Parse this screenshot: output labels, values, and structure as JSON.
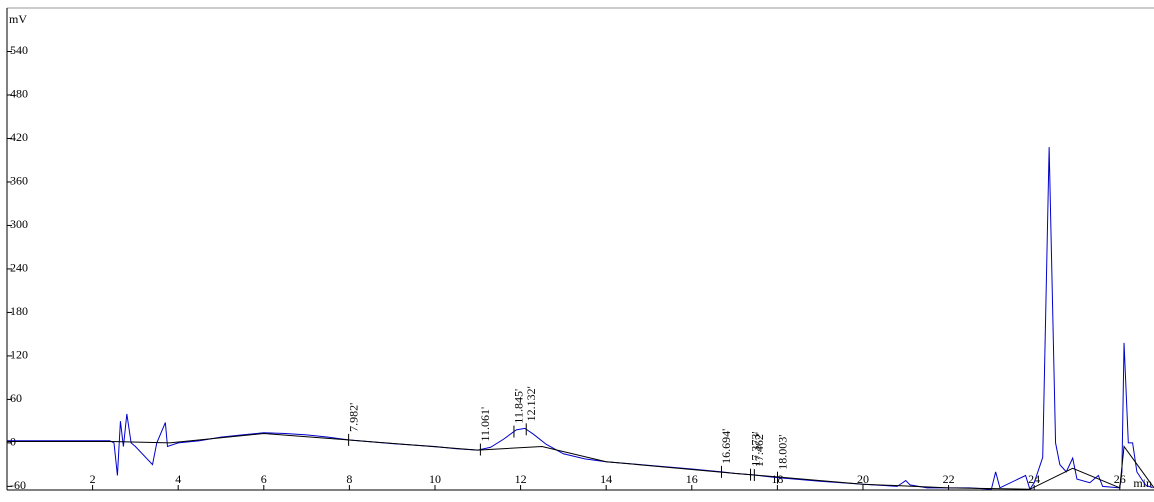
{
  "chart_data": {
    "type": "line",
    "y_label": "mV",
    "x_label": "min",
    "xlim": [
      0,
      26.8
    ],
    "ylim": [
      -65,
      600
    ],
    "xticks": [
      2,
      4,
      6,
      8,
      10,
      12,
      14,
      16,
      18,
      20,
      22,
      24,
      26
    ],
    "yticks": [
      -60,
      0,
      60,
      120,
      180,
      240,
      300,
      360,
      420,
      480,
      540
    ],
    "series": [
      {
        "color": "#0000cc",
        "x": [
          0,
          2.4,
          2.5,
          2.58,
          2.65,
          2.72,
          2.8,
          2.9,
          3.0,
          3.4,
          3.5,
          3.7,
          3.75,
          4.0,
          4.5,
          5,
          5.5,
          6,
          6.5,
          7,
          7.5,
          8,
          9,
          10,
          10.5,
          11,
          11.3,
          11.6,
          11.9,
          12.1,
          12.3,
          12.6,
          13,
          13.5,
          14,
          15,
          16,
          16.7,
          17,
          17.4,
          18,
          19,
          20,
          20.8,
          20.9,
          21,
          21.1,
          21.5,
          22,
          22.5,
          23,
          23.1,
          23.2,
          23.8,
          23.9,
          24.0,
          24.2,
          24.35,
          24.5,
          24.6,
          24.75,
          24.9,
          25.0,
          25.3,
          25.5,
          25.6,
          26.0,
          26.05,
          26.1,
          26.2,
          26.3,
          26.4,
          26.6,
          26.77
        ],
        "values": [
          3,
          3,
          0,
          -45,
          30,
          -5,
          40,
          0,
          -5,
          -30,
          0,
          28,
          -5,
          0,
          3,
          8,
          11,
          14,
          13,
          11,
          8,
          4,
          -1,
          -5,
          -8,
          -10,
          -6,
          5,
          18,
          20,
          12,
          -2,
          -15,
          -22,
          -26,
          -31,
          -36,
          -40,
          -42,
          -44,
          -48,
          -53,
          -57,
          -60,
          -56,
          -52,
          -58,
          -62,
          -62,
          -62,
          -64,
          -40,
          -62,
          -45,
          -64,
          -55,
          -20,
          408,
          0,
          -30,
          -40,
          -21,
          -50,
          -55,
          -45,
          -60,
          -62,
          -40,
          138,
          0,
          0,
          -40,
          -58,
          -62
        ]
      },
      {
        "color": "#000000",
        "x": [
          0,
          2.4,
          3.8,
          6,
          8,
          11,
          12.5,
          14,
          17,
          20,
          22,
          23.9,
          24.9,
          26.0,
          26.1,
          26.8
        ],
        "values": [
          2,
          2,
          0,
          13,
          4,
          -10,
          -5,
          -26,
          -42,
          -57,
          -62,
          -64,
          -35,
          -62,
          -5,
          -62
        ]
      }
    ],
    "annotations": [
      {
        "x": 7.982,
        "text": "7.982'"
      },
      {
        "x": 11.061,
        "text": "11.061'"
      },
      {
        "x": 11.845,
        "text": "11.845'"
      },
      {
        "x": 12.132,
        "text": "12.132'"
      },
      {
        "x": 16.694,
        "text": "16.694'"
      },
      {
        "x": 17.373,
        "text": "17.373'"
      },
      {
        "x": 17.462,
        "text": "17.462'"
      },
      {
        "x": 18.003,
        "text": "18.003'"
      }
    ]
  }
}
